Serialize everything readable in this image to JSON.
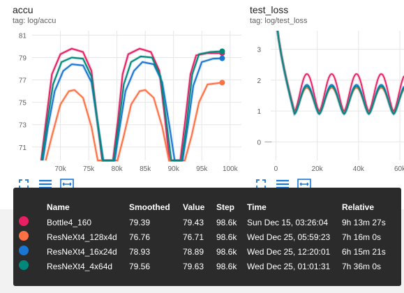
{
  "charts": {
    "accu": {
      "title": "accu",
      "tag": "tag: log/accu"
    },
    "test_loss": {
      "title": "test_loss",
      "tag": "tag: log/test_loss"
    }
  },
  "chart_data": [
    {
      "type": "line",
      "title": "accu",
      "xlim": [
        65000,
        102000
      ],
      "ylim": [
        69.8,
        81.4
      ],
      "xticks": [
        70000,
        75000,
        80000,
        85000,
        90000,
        95000,
        100000
      ],
      "xtick_labels": [
        "70k",
        "75k",
        "80k",
        "85k",
        "90k",
        "95k",
        "100k"
      ],
      "yticks": [
        71,
        73,
        75,
        77,
        79,
        81
      ],
      "ytick_labels": [
        "71",
        "73",
        "75",
        "77",
        "79",
        "81"
      ],
      "grid": true,
      "series": [
        {
          "name": "Bottle4_160",
          "color": "#e91e63",
          "x": [
            66600,
            67500,
            68500,
            70000,
            72000,
            74000,
            75500,
            76500,
            77400,
            79300,
            80200,
            81000,
            82000,
            84000,
            86000,
            87500,
            88500,
            89300,
            91200,
            92100,
            93000,
            94000,
            96000,
            98600
          ],
          "y": [
            69.8,
            73.5,
            77.5,
            79.3,
            79.8,
            79.5,
            77.8,
            73.5,
            69.8,
            69.8,
            73.5,
            77.5,
            79.3,
            79.8,
            79.5,
            77.8,
            73.5,
            69.8,
            69.8,
            73.5,
            77.5,
            79.2,
            79.4,
            79.39
          ]
        },
        {
          "name": "ResNeXt4_128x4d",
          "color": "#ff7043",
          "x": [
            67400,
            68500,
            70000,
            71500,
            72500,
            74000,
            75500,
            76600,
            80100,
            81200,
            82500,
            84000,
            85000,
            86500,
            88000,
            89200,
            92000,
            93200,
            94500,
            96000,
            98600
          ],
          "y": [
            69.8,
            72,
            74.8,
            76,
            76.1,
            75.4,
            72.8,
            69.8,
            69.8,
            72,
            74.8,
            76,
            76.1,
            75.4,
            72.8,
            69.8,
            69.8,
            72,
            75,
            76.6,
            76.76
          ]
        },
        {
          "name": "ResNeXt4_16x24d",
          "color": "#1976d2",
          "x": [
            66900,
            67800,
            69000,
            70500,
            72000,
            74000,
            75500,
            76700,
            77600,
            79600,
            80500,
            81500,
            83000,
            84500,
            86500,
            88000,
            89300,
            90200,
            91600,
            92500,
            93500,
            95000,
            97000,
            98600
          ],
          "y": [
            69.8,
            72.8,
            76,
            77.8,
            78.4,
            78.3,
            76.8,
            72.8,
            69.8,
            69.8,
            72.8,
            76,
            77.8,
            78.6,
            78.4,
            76.8,
            72.8,
            69.8,
            69.8,
            72.8,
            76.5,
            78.6,
            78.9,
            78.93
          ]
        },
        {
          "name": "ResNeXt4_4x64d",
          "color": "#00897b",
          "x": [
            66700,
            67600,
            68700,
            70200,
            72000,
            74000,
            75500,
            76600,
            77500,
            79400,
            80300,
            81200,
            82500,
            84200,
            86200,
            87700,
            88800,
            89600,
            91400,
            92300,
            93300,
            94500,
            96500,
            98600
          ],
          "y": [
            69.8,
            73,
            76.6,
            78.6,
            79,
            78.9,
            77.3,
            73,
            69.8,
            69.8,
            73,
            76.6,
            78.6,
            79.1,
            79,
            77.3,
            73,
            69.8,
            69.8,
            73,
            77.5,
            79.3,
            79.5,
            79.56
          ]
        }
      ]
    },
    {
      "type": "line",
      "title": "test_loss",
      "xlim": [
        -2500,
        62000
      ],
      "ylim": [
        -0.6,
        3.6
      ],
      "xticks": [
        0,
        20000,
        40000,
        60000
      ],
      "xtick_labels": [
        "0",
        "20k",
        "40k",
        "60k"
      ],
      "yticks": [
        0,
        1,
        2,
        3
      ],
      "ytick_labels": [
        "0",
        "1",
        "2",
        "3"
      ],
      "grid": true,
      "series": [
        {
          "name": "Bottle4_160",
          "color": "#e91e63",
          "period": 12000,
          "peak": 2.2,
          "trough": 1.0
        },
        {
          "name": "ResNeXt4_128x4d",
          "color": "#ff7043",
          "period": 12000,
          "peak": 1.75,
          "trough": 0.95
        },
        {
          "name": "ResNeXt4_16x24d",
          "color": "#1976d2",
          "period": 12000,
          "peak": 1.85,
          "trough": 0.9
        },
        {
          "name": "ResNeXt4_4x64d",
          "color": "#00897b",
          "period": 12000,
          "peak": 1.8,
          "trough": 0.92
        }
      ]
    }
  ],
  "tooltip": {
    "headers": {
      "name": "Name",
      "smoothed": "Smoothed",
      "value": "Value",
      "step": "Step",
      "time": "Time",
      "relative": "Relative"
    },
    "rows": [
      {
        "color": "#e91e63",
        "name": "Bottle4_160",
        "smoothed": "79.39",
        "value": "79.43",
        "step": "98.6k",
        "time": "Sun Dec 15, 03:26:04",
        "relative": "9h 13m 27s"
      },
      {
        "color": "#ff7043",
        "name": "ResNeXt4_128x4d",
        "smoothed": "76.76",
        "value": "76.71",
        "step": "98.6k",
        "time": "Wed Dec 25, 05:59:23",
        "relative": "7h 16m 0s"
      },
      {
        "color": "#1976d2",
        "name": "ResNeXt4_16x24d",
        "smoothed": "78.93",
        "value": "78.89",
        "step": "98.6k",
        "time": "Wed Dec 25, 12:20:01",
        "relative": "6h 15m 21s"
      },
      {
        "color": "#00897b",
        "name": "ResNeXt4_4x64d",
        "smoothed": "79.56",
        "value": "79.63",
        "step": "98.6k",
        "time": "Wed Dec 25, 01:01:31",
        "relative": "7h 36m 0s"
      }
    ]
  },
  "icons": [
    "fullscreen-icon",
    "data-table-icon",
    "fit-domain-icon"
  ]
}
